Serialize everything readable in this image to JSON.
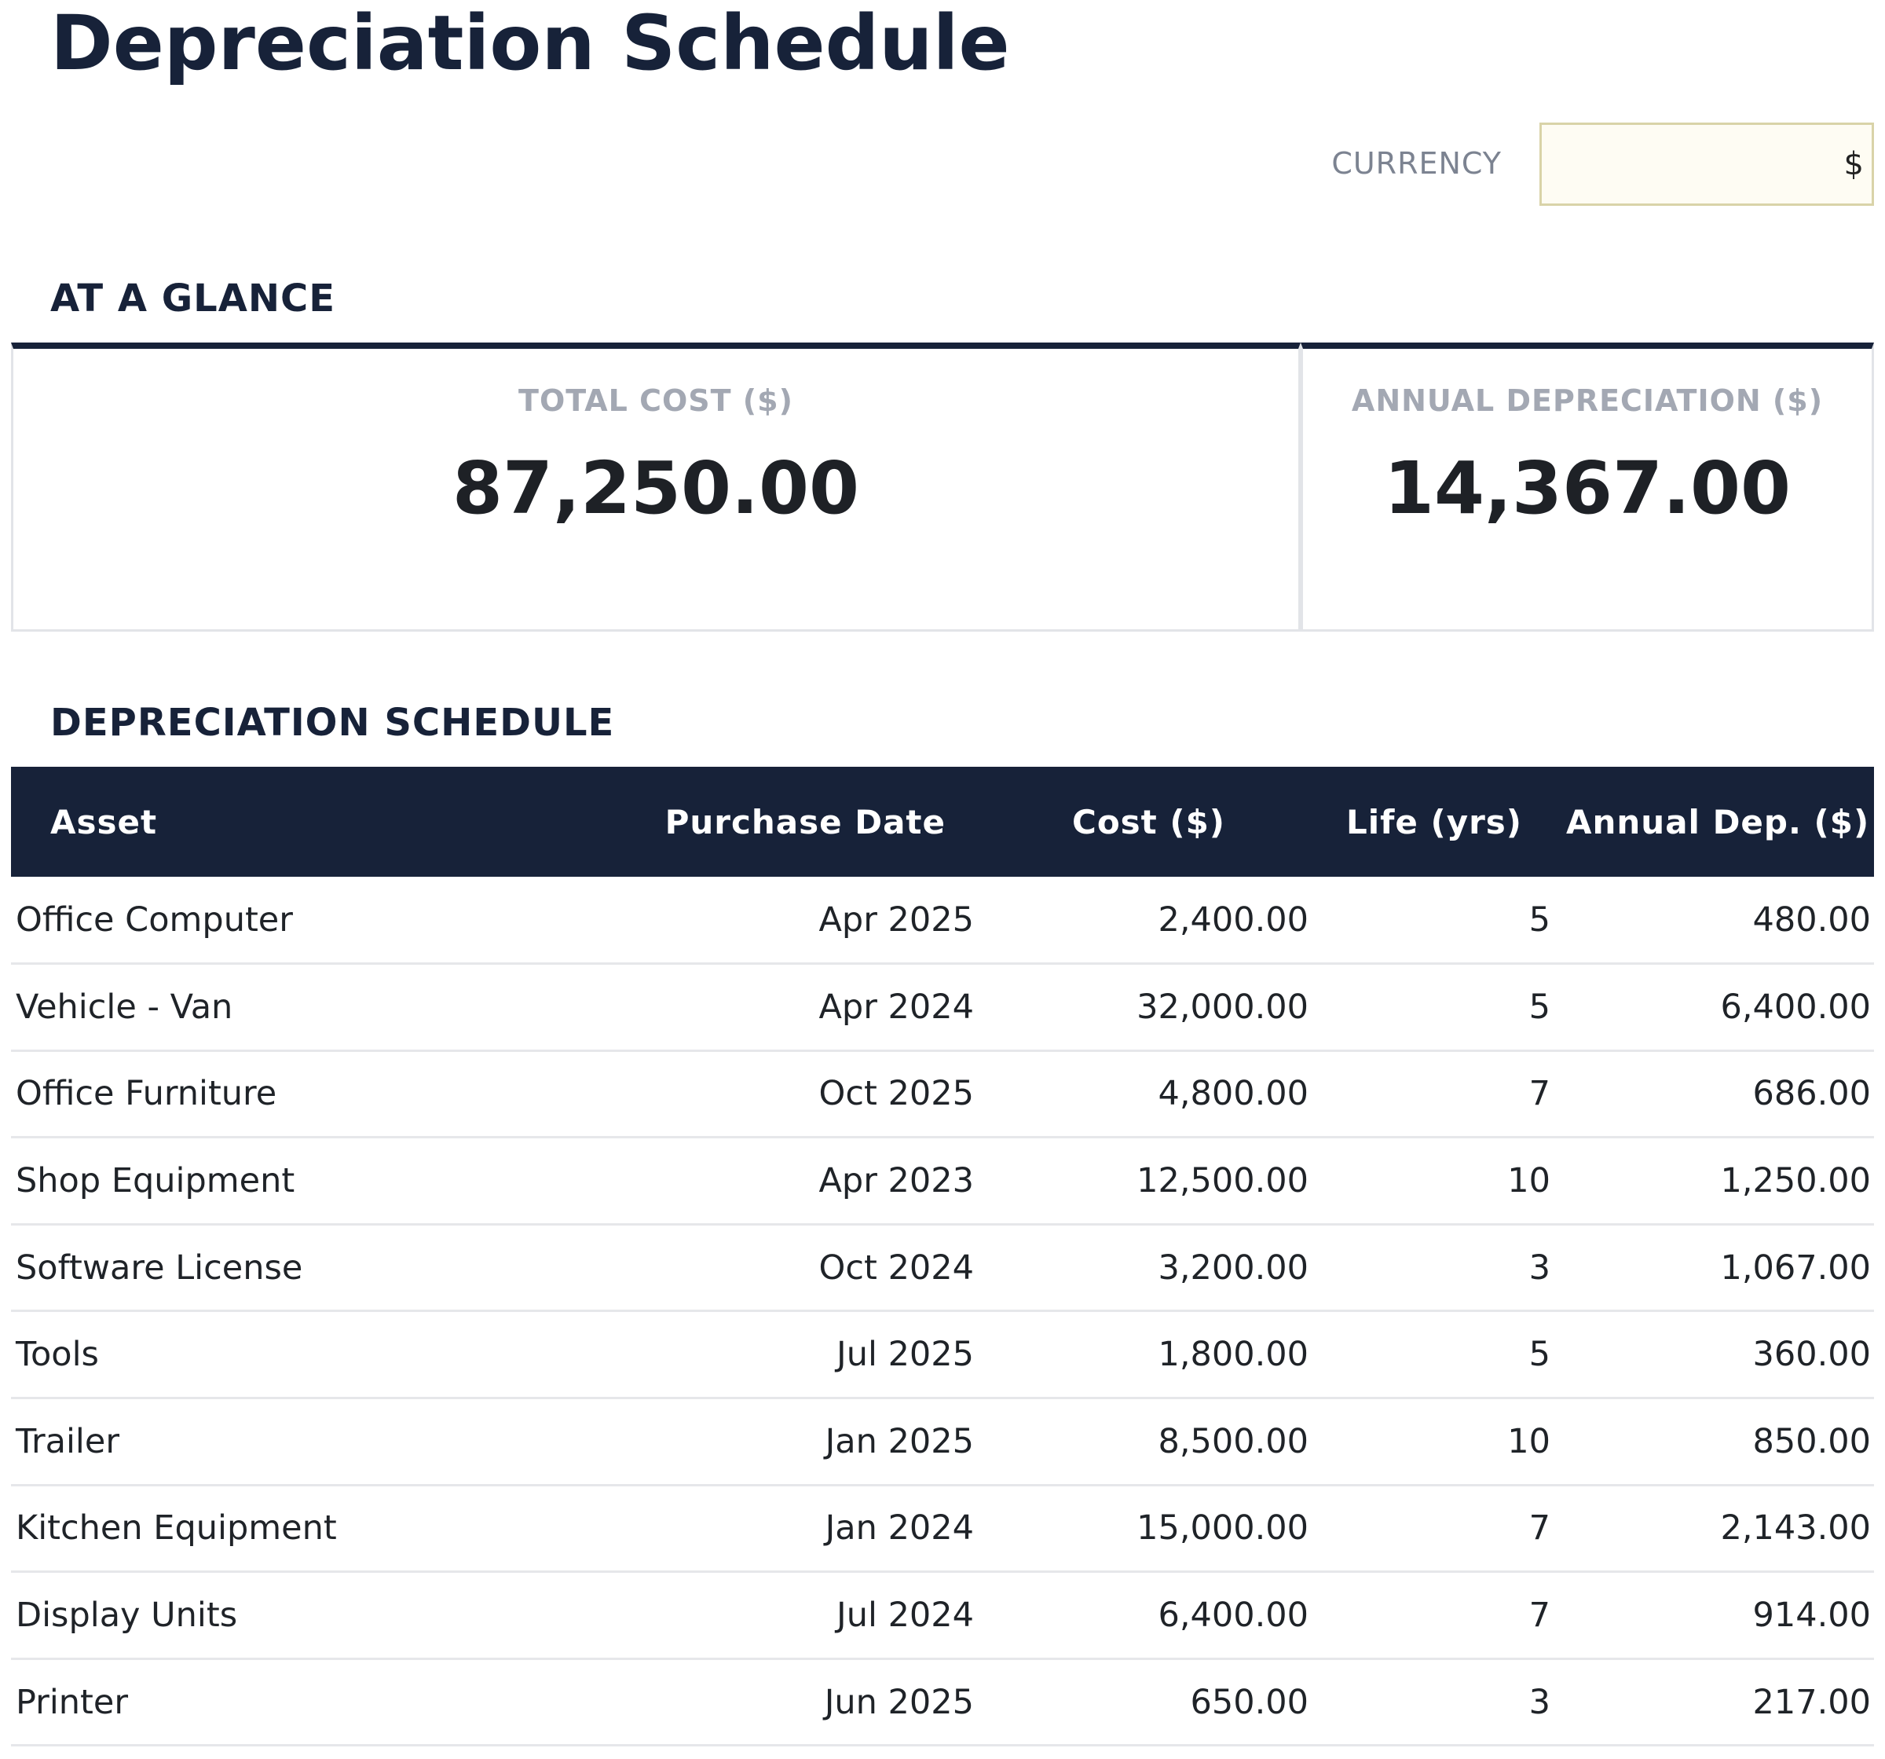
{
  "header": {
    "title": "Depreciation Schedule"
  },
  "currency": {
    "label": "CURRENCY",
    "value": "$"
  },
  "glance": {
    "heading": "AT A GLANCE",
    "total_cost": {
      "label": "TOTAL COST ($)",
      "value": "87,250.00"
    },
    "annual_dep": {
      "label": "ANNUAL DEPRECIATION ($)",
      "value": "14,367.00"
    }
  },
  "schedule": {
    "heading": "DEPRECIATION SCHEDULE",
    "columns": [
      "Asset",
      "Purchase Date",
      "Cost ($)",
      "Life (yrs)",
      "Annual Dep. ($)"
    ],
    "rows": [
      [
        "Office Computer",
        "Apr 2025",
        "2,400.00",
        "5",
        "480.00"
      ],
      [
        "Vehicle - Van",
        "Apr 2024",
        "32,000.00",
        "5",
        "6,400.00"
      ],
      [
        "Office Furniture",
        "Oct 2025",
        "4,800.00",
        "7",
        "686.00"
      ],
      [
        "Shop Equipment",
        "Apr 2023",
        "12,500.00",
        "10",
        "1,250.00"
      ],
      [
        "Software License",
        "Oct 2024",
        "3,200.00",
        "3",
        "1,067.00"
      ],
      [
        "Tools",
        "Jul 2025",
        "1,800.00",
        "5",
        "360.00"
      ],
      [
        "Trailer",
        "Jan 2025",
        "8,500.00",
        "10",
        "850.00"
      ],
      [
        "Kitchen Equipment",
        "Jan 2024",
        "15,000.00",
        "7",
        "2,143.00"
      ],
      [
        "Display Units",
        "Jul 2024",
        "6,400.00",
        "7",
        "914.00"
      ],
      [
        "Printer",
        "Jun 2025",
        "650.00",
        "3",
        "217.00"
      ]
    ]
  }
}
